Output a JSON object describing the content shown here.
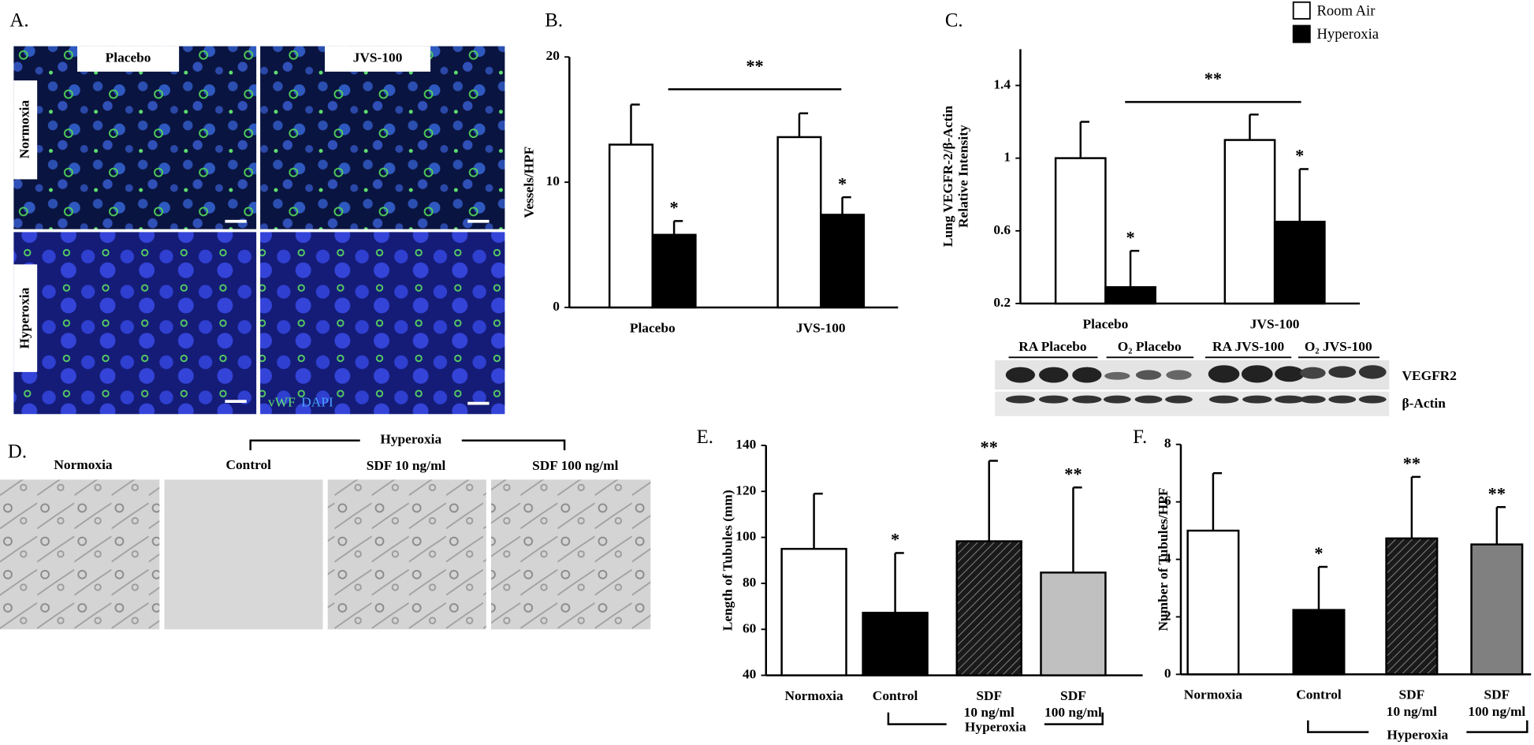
{
  "panel_a": {
    "label": "A.",
    "columns": [
      "Placebo",
      "JVS-100"
    ],
    "rows": [
      "Normoxia",
      "Hyperoxia"
    ],
    "stain_green": "vWF",
    "stain_blue": "DAPI"
  },
  "panel_d": {
    "label": "D.",
    "columns": [
      "Normoxia",
      "Control",
      "SDF 10 ng/ml",
      "SDF 100 ng/ml"
    ],
    "group_label": "Hyperoxia"
  },
  "blot": {
    "lanes": [
      "RA Placebo",
      "O₂ Placebo",
      "RA JVS-100",
      "O₂ JVS-100"
    ],
    "bands": [
      "VEGFR2",
      "β-Actin"
    ]
  },
  "chart_data": [
    {
      "type": "bar",
      "panel_label": "B.",
      "ylabel": [
        "Vessels/HPF"
      ],
      "categories": [
        "Placebo",
        "JVS-100"
      ],
      "series": [
        {
          "color": "#ffffff",
          "values": [
            13.0,
            13.6
          ],
          "errors": [
            3.2,
            1.9
          ]
        },
        {
          "color": "#000000",
          "values": [
            5.8,
            7.4
          ],
          "errors": [
            1.1,
            1.4
          ],
          "bar_labels": [
            "*",
            "*"
          ]
        }
      ],
      "ylim": [
        0,
        20
      ],
      "yticks": [
        0,
        10,
        20
      ],
      "comparison_label": "**"
    },
    {
      "type": "bar",
      "panel_label": "C.",
      "ylabel": [
        "Lung VEGFR-2/β-Actin",
        "Relative Intensity"
      ],
      "categories": [
        "Placebo",
        "JVS-100"
      ],
      "series": [
        {
          "name": "Room Air",
          "color": "#ffffff",
          "values": [
            1.0,
            1.1
          ],
          "errors": [
            0.2,
            0.14
          ]
        },
        {
          "name": "Hyperoxia",
          "color": "#000000",
          "values": [
            0.29,
            0.65
          ],
          "errors": [
            0.2,
            0.29
          ],
          "bar_labels": [
            "*",
            "*"
          ]
        }
      ],
      "ylim": [
        0.2,
        1.6
      ],
      "yticks": [
        0.2,
        0.6,
        1,
        1.4
      ],
      "comparison_label": "**",
      "legend": "top-right"
    },
    {
      "type": "bar",
      "panel_label": "E.",
      "ylabel": [
        "Length of Tubules (mm)"
      ],
      "categories": [
        "Normoxia",
        "Control",
        "SDF 10 ng/ml",
        "SDF 100 ng/ml"
      ],
      "series": [
        {
          "colors": [
            "#ffffff",
            "#000000",
            "#2a2a2a",
            "#c0c0c0"
          ],
          "hatch": [
            false,
            false,
            true,
            false
          ],
          "values": [
            95,
            67.2,
            98.3,
            84.7
          ],
          "errors": [
            24,
            26,
            35,
            37
          ],
          "bar_labels": [
            null,
            "*",
            "**",
            "**"
          ]
        }
      ],
      "ylim": [
        40,
        140
      ],
      "yticks": [
        40,
        60,
        80,
        100,
        120,
        140
      ],
      "group_label": "Hyperoxia"
    },
    {
      "type": "bar",
      "panel_label": "F.",
      "ylabel": [
        "Number of Tubules/HPF"
      ],
      "categories": [
        "Normoxia",
        "Control",
        "SDF 10 ng/ml",
        "SDF 100 ng/ml"
      ],
      "series": [
        {
          "colors": [
            "#ffffff",
            "#000000",
            "#2a2a2a",
            "#808080"
          ],
          "hatch": [
            false,
            false,
            true,
            false
          ],
          "values": [
            5.0,
            2.24,
            4.73,
            4.52
          ],
          "errors": [
            2.0,
            1.5,
            2.14,
            1.3
          ],
          "bar_labels": [
            null,
            "*",
            "**",
            "**"
          ]
        }
      ],
      "ylim": [
        0,
        8
      ],
      "yticks": [
        0,
        2,
        4,
        6,
        8
      ],
      "group_label": "Hyperoxia"
    }
  ]
}
